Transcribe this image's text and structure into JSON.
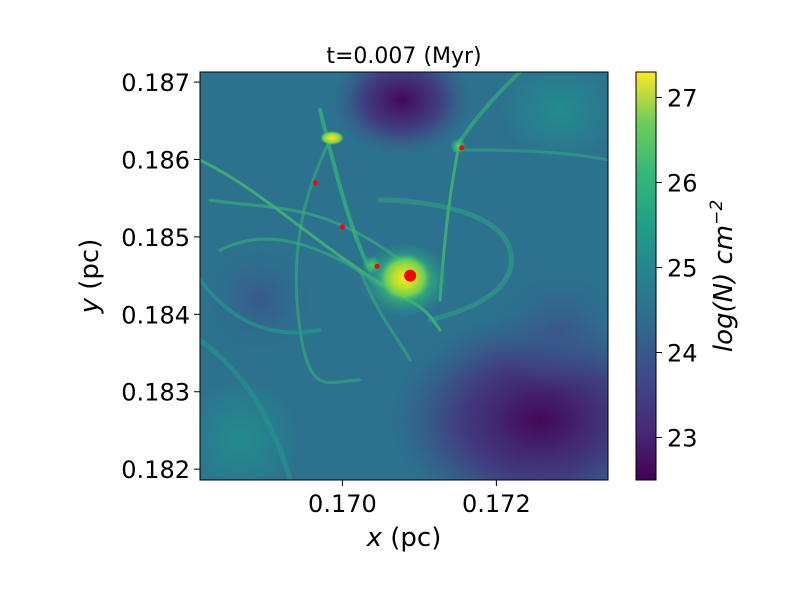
{
  "chart_data": {
    "type": "heatmap",
    "title": "t=0.007 (Myr)",
    "xlabel": {
      "var": "x",
      "unit": " (pc)"
    },
    "ylabel": {
      "var": "y",
      "unit": " (pc)"
    },
    "xlim": [
      0.16815,
      0.17345
    ],
    "ylim": [
      0.18186,
      0.18713
    ],
    "xticks": [
      0.17,
      0.172
    ],
    "xtick_labels": [
      "0.170",
      "0.172"
    ],
    "yticks": [
      0.182,
      0.183,
      0.184,
      0.185,
      0.186,
      0.187
    ],
    "ytick_labels": [
      "0.182",
      "0.183",
      "0.184",
      "0.185",
      "0.186",
      "0.187"
    ],
    "colorbar": {
      "label": {
        "base": "log(N) cm",
        "exp": "−2"
      },
      "range": [
        22.5,
        27.3
      ],
      "ticks": [
        23,
        24,
        25,
        26,
        27
      ],
      "tick_labels": [
        "23",
        "24",
        "25",
        "26",
        "27"
      ],
      "colormap": "viridis"
    },
    "points": [
      {
        "x": 0.17088,
        "y": 0.1845,
        "size": "large",
        "color": "#ff0000"
      },
      {
        "x": 0.17045,
        "y": 0.18462,
        "size": "small",
        "color": "#ff0000"
      },
      {
        "x": 0.17,
        "y": 0.18513,
        "size": "small",
        "color": "#ff0000"
      },
      {
        "x": 0.16965,
        "y": 0.1857,
        "size": "small",
        "color": "#ff0000"
      },
      {
        "x": 0.17155,
        "y": 0.18615,
        "size": "small",
        "color": "#ff0000"
      }
    ],
    "grid": false
  }
}
